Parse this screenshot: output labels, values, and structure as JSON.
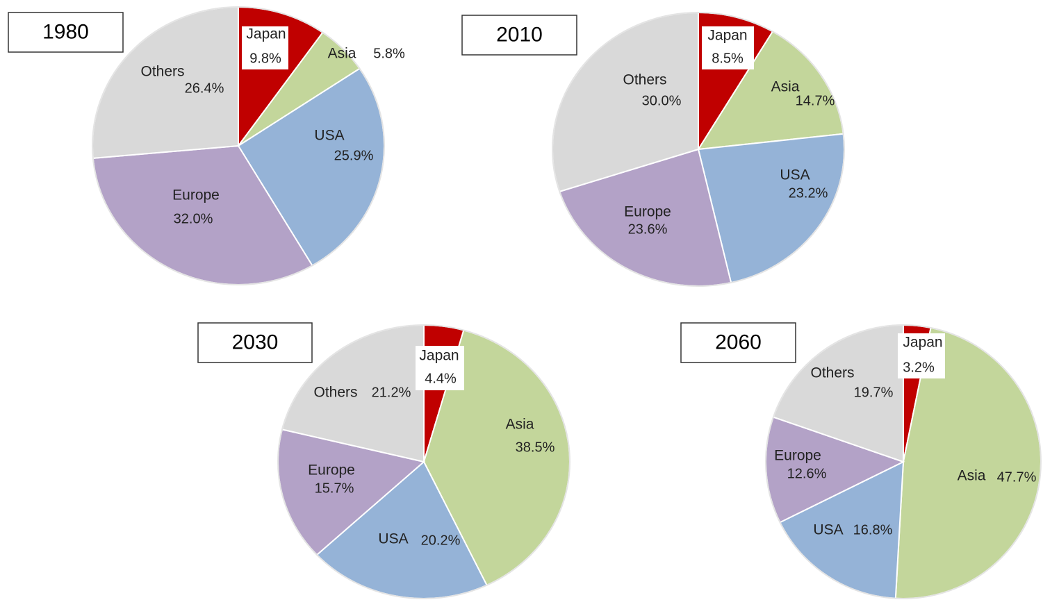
{
  "chart_data": [
    {
      "type": "pie",
      "title": "1980",
      "categories": [
        "Japan",
        "Asia",
        "USA",
        "Europe",
        "Others"
      ],
      "values": [
        9.8,
        5.8,
        25.9,
        32.0,
        26.4
      ],
      "value_labels": [
        "9.8%",
        "5.8%",
        "25.9%",
        "32.0%",
        "26.4%"
      ],
      "colors": [
        "#c00000",
        "#c3d69b",
        "#95b3d7",
        "#b3a2c7",
        "#d9d9d9"
      ]
    },
    {
      "type": "pie",
      "title": "2010",
      "categories": [
        "Japan",
        "Asia",
        "USA",
        "Europe",
        "Others"
      ],
      "values": [
        8.5,
        14.7,
        23.2,
        23.6,
        30.0
      ],
      "value_labels": [
        "8.5%",
        "14.7%",
        "23.2%",
        "23.6%",
        "30.0%"
      ],
      "colors": [
        "#c00000",
        "#c3d69b",
        "#95b3d7",
        "#b3a2c7",
        "#d9d9d9"
      ]
    },
    {
      "type": "pie",
      "title": "2030",
      "categories": [
        "Japan",
        "Asia",
        "USA",
        "Europe",
        "Others"
      ],
      "values": [
        4.4,
        38.5,
        20.2,
        15.7,
        21.2
      ],
      "value_labels": [
        "4.4%",
        "38.5%",
        "20.2%",
        "15.7%",
        "21.2%"
      ],
      "colors": [
        "#c00000",
        "#c3d69b",
        "#95b3d7",
        "#b3a2c7",
        "#d9d9d9"
      ]
    },
    {
      "type": "pie",
      "title": "2060",
      "categories": [
        "Japan",
        "Asia",
        "USA",
        "Europe",
        "Others"
      ],
      "values": [
        3.2,
        47.7,
        16.8,
        12.6,
        19.7
      ],
      "value_labels": [
        "3.2%",
        "47.7%",
        "16.8%",
        "12.6%",
        "19.7%"
      ],
      "colors": [
        "#c00000",
        "#c3d69b",
        "#95b3d7",
        "#b3a2c7",
        "#d9d9d9"
      ]
    }
  ]
}
